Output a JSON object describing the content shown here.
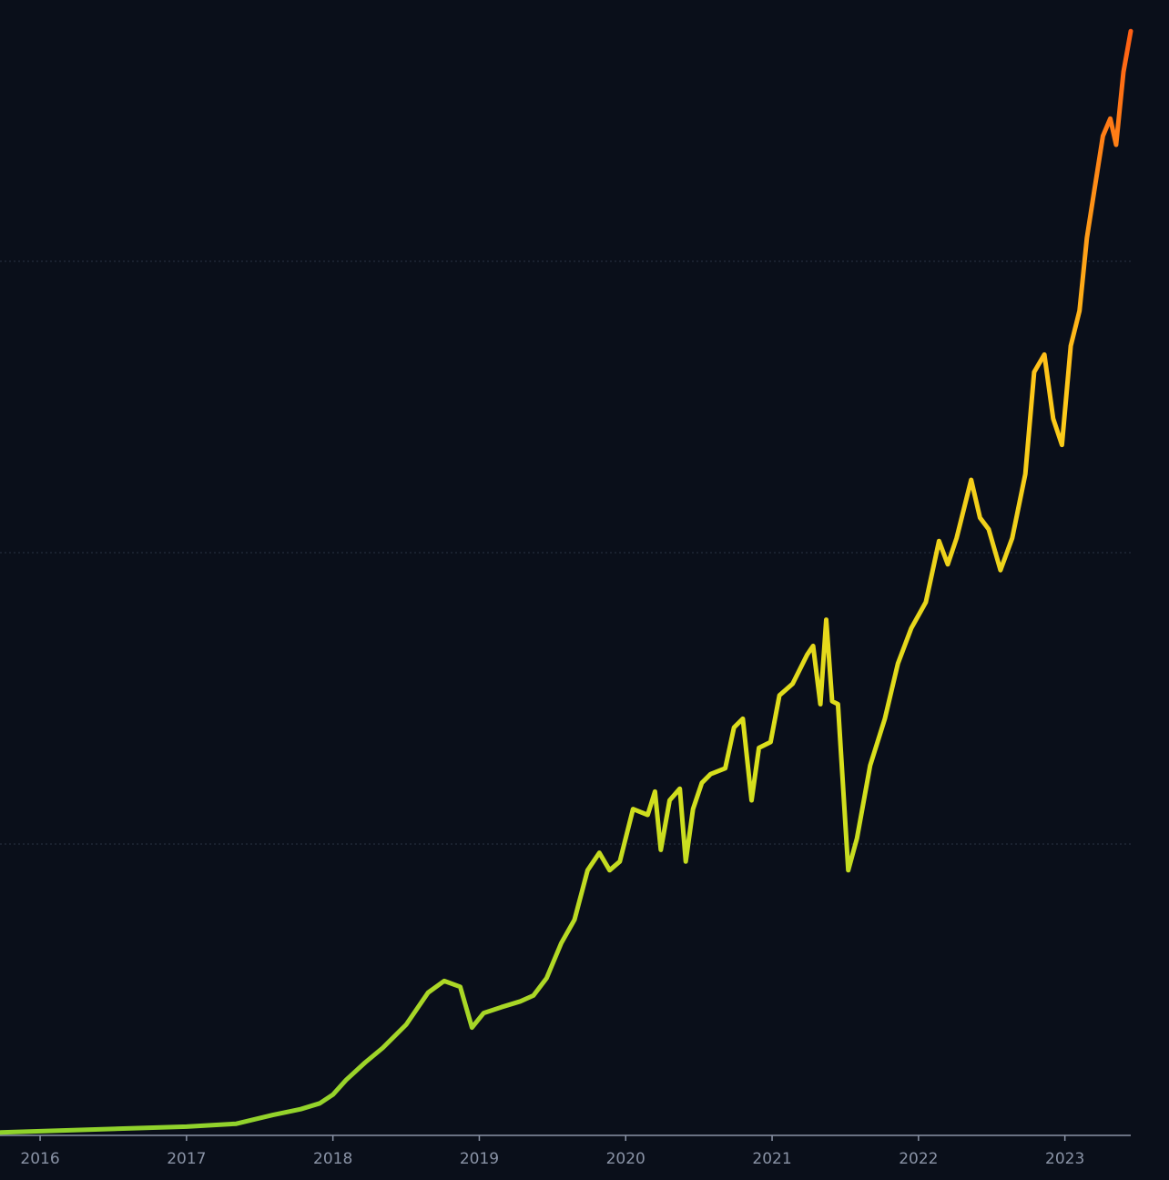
{
  "chart_data": {
    "type": "line",
    "x": [
      2015.73,
      2016.35,
      2017.0,
      2017.34,
      2017.59,
      2017.78,
      2017.91,
      2018.0,
      2018.09,
      2018.22,
      2018.34,
      2018.5,
      2018.65,
      2018.76,
      2018.87,
      2018.95,
      2019.03,
      2019.15,
      2019.28,
      2019.37,
      2019.46,
      2019.56,
      2019.65,
      2019.74,
      2019.82,
      2019.89,
      2019.96,
      2020.05,
      2020.15,
      2020.2,
      2020.24,
      2020.3,
      2020.37,
      2020.41,
      2020.46,
      2020.52,
      2020.58,
      2020.68,
      2020.74,
      2020.8,
      2020.86,
      2020.91,
      2020.99,
      2021.05,
      2021.14,
      2021.24,
      2021.28,
      2021.33,
      2021.37,
      2021.41,
      2021.45,
      2021.52,
      2021.58,
      2021.67,
      2021.77,
      2021.86,
      2021.95,
      2022.05,
      2022.14,
      2022.2,
      2022.26,
      2022.36,
      2022.42,
      2022.48,
      2022.56,
      2022.64,
      2022.73,
      2022.79,
      2022.86,
      2022.92,
      2022.98,
      2023.04,
      2023.1,
      2023.15,
      2023.2,
      2023.26,
      2023.31,
      2023.35,
      2023.4,
      2023.45
    ],
    "values": [
      0.01,
      0.02,
      0.03,
      0.04,
      0.07,
      0.09,
      0.11,
      0.14,
      0.19,
      0.25,
      0.3,
      0.38,
      0.49,
      0.53,
      0.51,
      0.37,
      0.42,
      0.44,
      0.46,
      0.48,
      0.54,
      0.66,
      0.74,
      0.91,
      0.97,
      0.91,
      0.94,
      1.12,
      1.1,
      1.18,
      0.98,
      1.15,
      1.19,
      0.94,
      1.12,
      1.21,
      1.24,
      1.26,
      1.4,
      1.43,
      1.15,
      1.33,
      1.35,
      1.51,
      1.55,
      1.65,
      1.68,
      1.48,
      1.77,
      1.49,
      1.48,
      0.91,
      1.02,
      1.27,
      1.43,
      1.62,
      1.74,
      1.83,
      2.04,
      1.96,
      2.05,
      2.25,
      2.12,
      2.08,
      1.94,
      2.05,
      2.27,
      2.62,
      2.68,
      2.46,
      2.37,
      2.71,
      2.83,
      3.08,
      3.24,
      3.43,
      3.49,
      3.4,
      3.65,
      3.79
    ],
    "line_gradient": [
      "#8fd22c",
      "#d9e01c",
      "#ffc81a",
      "#ff5a14"
    ],
    "xlim": [
      2015.726,
      2023.45
    ],
    "xticks": [
      2016,
      2017,
      2018,
      2019,
      2020,
      2021,
      2022,
      2023
    ],
    "ylim": [
      0,
      3.85
    ],
    "yticks": [
      0,
      1,
      2,
      3
    ],
    "grid": true
  }
}
